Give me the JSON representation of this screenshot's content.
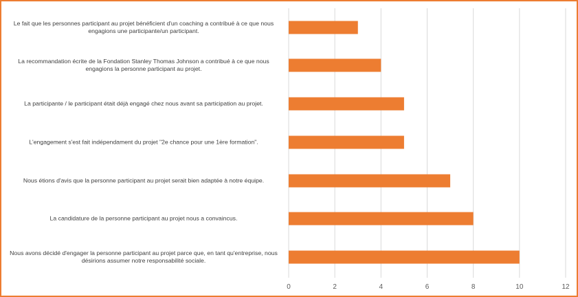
{
  "colors": {
    "bar": "#ED7D31",
    "frame": "#ED7D31",
    "grid": "#D9D9D9",
    "text": "#404040"
  },
  "chart_data": {
    "type": "bar",
    "orientation": "horizontal",
    "categories": [
      "Le fait que les personnes participant au projet bénéficient d'un coaching a contribué à ce que nous engagions une participante/un participant.",
      "La recommandation écrite de la Fondation Stanley Thomas Johnson a contribué à ce que nous engagions la personne participant au projet.",
      "La participante / le participant était déjà engagé chez nous avant sa participation au projet.",
      "L'engagement s'est fait indépendament du projet \"2e chance pour une 1ère formation\".",
      "Nous étions d'avis que la personne participant au projet serait bien adaptée à notre équipe.",
      "La candidature de la personne participant au projet nous a convaincus.",
      "Nous avons décidé d'engager la personne participant au projet parce que, en tant qu'entreprise, nous désirions assumer notre responsabilité sociale."
    ],
    "values": [
      3,
      4,
      5,
      5,
      7,
      8,
      10
    ],
    "xlim": [
      0,
      12
    ],
    "xticks": [
      "0",
      "2",
      "4",
      "6",
      "8",
      "10",
      "12"
    ],
    "title": "",
    "xlabel": "",
    "ylabel": "",
    "grid": true,
    "legend": "none"
  }
}
